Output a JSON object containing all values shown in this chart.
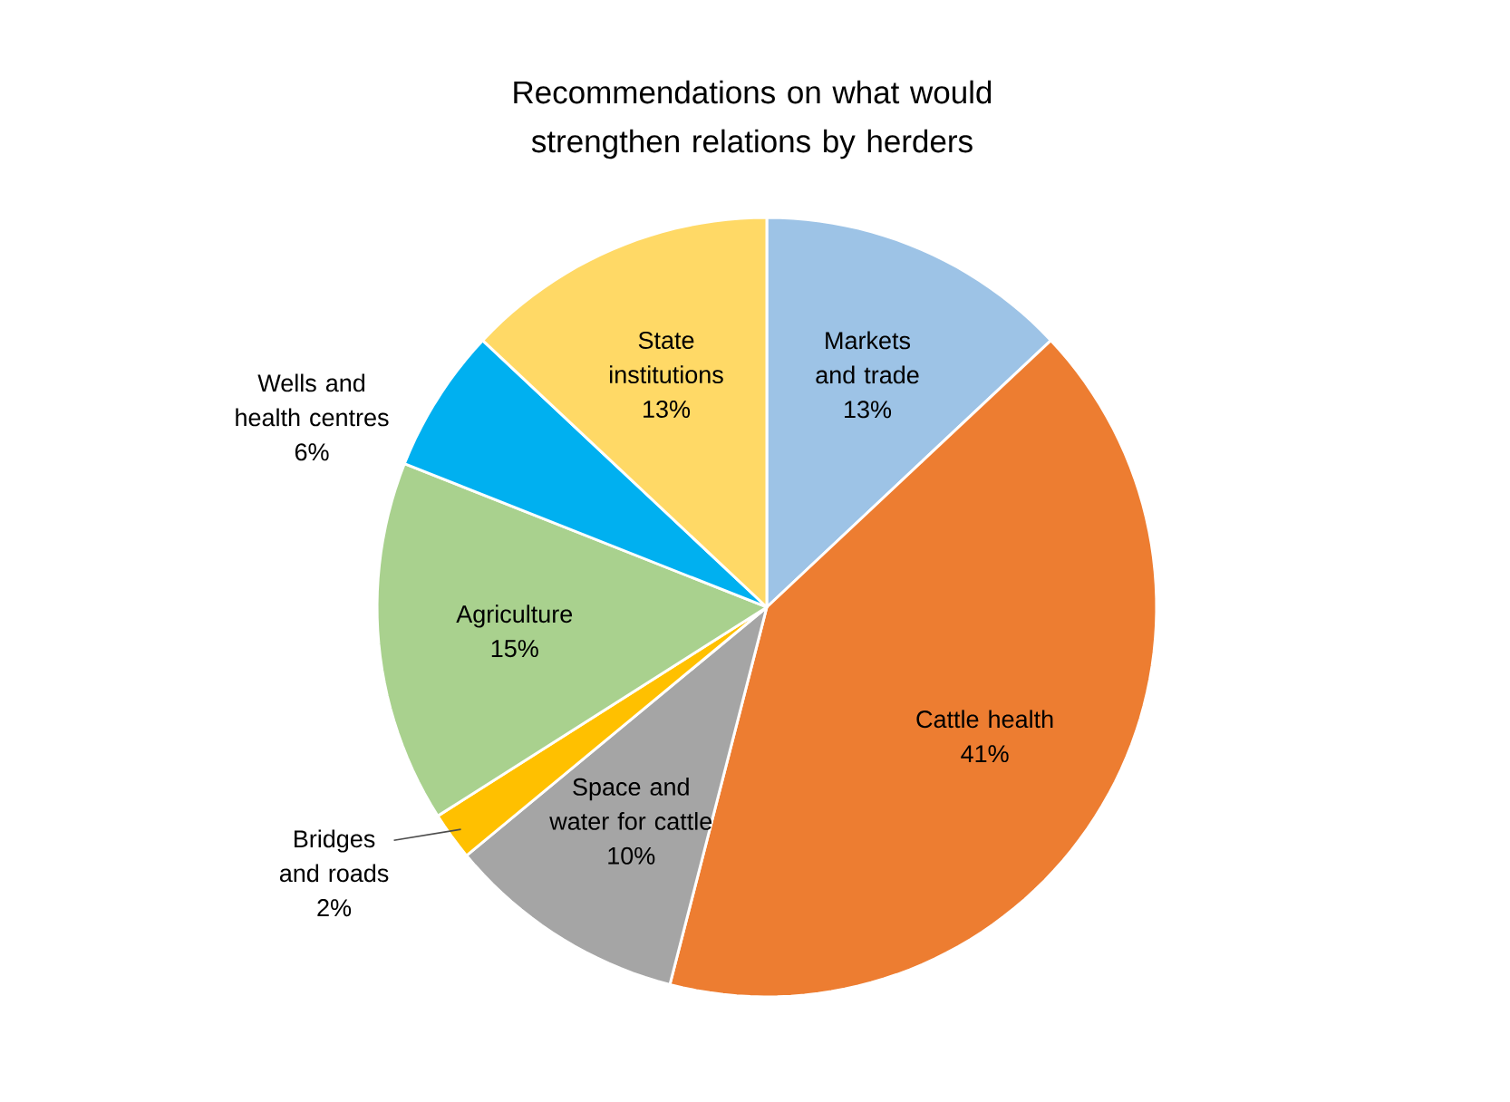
{
  "chart_data": {
    "type": "pie",
    "title": "Recommendations on what would strengthen relations by herders",
    "categories": [
      "Markets and trade",
      "Cattle health",
      "Space and water for cattle",
      "Bridges and roads",
      "Agriculture",
      "Wells and health centres",
      "State institutions"
    ],
    "values": [
      13,
      41,
      10,
      2,
      15,
      6,
      13
    ],
    "value_labels": [
      "13%",
      "41%",
      "10%",
      "2%",
      "15%",
      "6%",
      "13%"
    ],
    "colors": [
      "#9dc3e6",
      "#ed7d31",
      "#a5a5a5",
      "#ffc000",
      "#a9d18e",
      "#00b0f0",
      "#ffd966"
    ]
  }
}
